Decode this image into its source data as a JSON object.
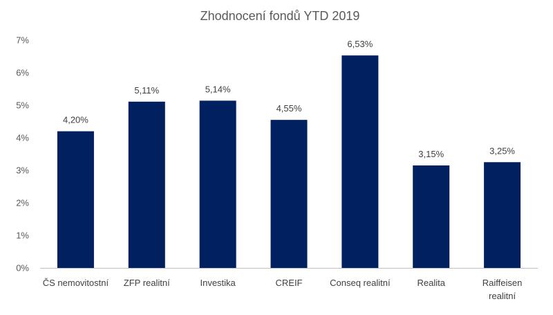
{
  "chart_data": {
    "type": "bar",
    "title": "Zhodnocení fondů YTD 2019",
    "xlabel": "",
    "ylabel": "",
    "categories": [
      "ČS nemovitostní",
      "ZFP realitní",
      "Investika",
      "CREIF",
      "Conseq realitní",
      "Realita",
      "Raiffeisen realitní"
    ],
    "category_lines": [
      [
        "ČS nemovitostní"
      ],
      [
        "ZFP realitní"
      ],
      [
        "Investika"
      ],
      [
        "CREIF"
      ],
      [
        "Conseq realitní"
      ],
      [
        "Realita"
      ],
      [
        "Raiffeisen",
        "realitní"
      ]
    ],
    "values": [
      4.2,
      5.11,
      5.14,
      4.55,
      6.53,
      3.15,
      3.25
    ],
    "data_labels": [
      "4,20%",
      "5,11%",
      "5,14%",
      "4,55%",
      "6,53%",
      "3,15%",
      "3,25%"
    ],
    "ylim": [
      0,
      7
    ],
    "y_ticks": [
      0,
      1,
      2,
      3,
      4,
      5,
      6,
      7
    ],
    "y_tick_labels": [
      "0%",
      "1%",
      "2%",
      "3%",
      "4%",
      "5%",
      "6%",
      "7%"
    ],
    "grid": false,
    "legend": "none",
    "colors": {
      "bar": "#002060",
      "axis": "#bfbfbf",
      "text": "#595959"
    }
  }
}
